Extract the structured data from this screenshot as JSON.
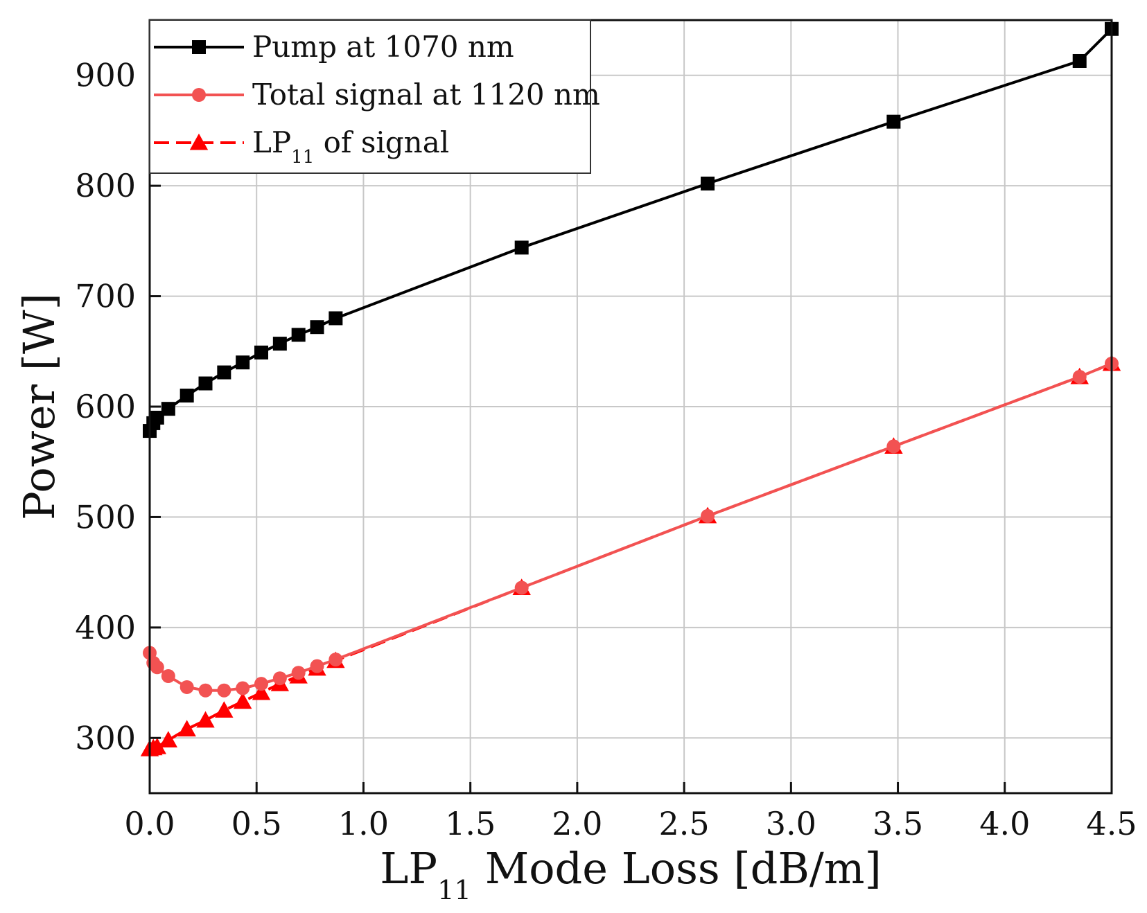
{
  "chart_data": {
    "type": "line",
    "title": "",
    "xlabel": {
      "prefix": "LP",
      "subscript": "11",
      "suffix": " Mode Loss [dB/m]"
    },
    "ylabel": "Power [W]",
    "xlim": [
      0,
      4.5
    ],
    "ylim": [
      250,
      950
    ],
    "xticks": [
      0.0,
      0.5,
      1.0,
      1.5,
      2.0,
      2.5,
      3.0,
      3.5,
      4.0,
      4.5
    ],
    "xtick_labels": [
      "0.0",
      "0.5",
      "1.0",
      "1.5",
      "2.0",
      "2.5",
      "3.0",
      "3.5",
      "4.0",
      "4.5"
    ],
    "yticks": [
      300,
      400,
      500,
      600,
      700,
      800,
      900
    ],
    "ytick_labels": [
      "300",
      "400",
      "500",
      "600",
      "700",
      "800",
      "900"
    ],
    "grid": true,
    "legend_position": "top-left",
    "series": [
      {
        "name": "Pump at 1070 nm",
        "label_prefix": "Pump at 1070 nm",
        "label_subscript": "",
        "label_suffix": "",
        "color": "#000000",
        "marker": "square",
        "dashed": false,
        "x": [
          0.0,
          0.017,
          0.035,
          0.087,
          0.174,
          0.261,
          0.348,
          0.435,
          0.522,
          0.609,
          0.696,
          0.783,
          0.87,
          1.74,
          2.61,
          3.48,
          4.35,
          4.5
        ],
        "y": [
          578,
          585,
          590,
          598,
          610,
          621,
          631,
          640,
          649,
          657,
          665,
          672,
          680,
          744,
          802,
          858,
          913,
          942
        ]
      },
      {
        "name": "Total signal at 1120 nm",
        "label_prefix": "Total signal at 1120 nm",
        "label_subscript": "",
        "label_suffix": "",
        "color": "#f25252",
        "marker": "circle",
        "dashed": false,
        "x": [
          0.0,
          0.017,
          0.035,
          0.087,
          0.174,
          0.261,
          0.348,
          0.435,
          0.522,
          0.609,
          0.696,
          0.783,
          0.87,
          1.74,
          2.61,
          3.48,
          4.35,
          4.5
        ],
        "y": [
          377,
          368,
          364,
          356,
          346,
          343,
          343,
          345,
          349,
          354,
          359,
          365,
          371,
          436,
          501,
          564,
          627,
          639
        ]
      },
      {
        "name": "LP11 of signal",
        "label_prefix": "LP",
        "label_subscript": "11",
        "label_suffix": " of signal",
        "color": "#ff0000",
        "marker": "triangle",
        "dashed": true,
        "x": [
          0.0,
          0.017,
          0.035,
          0.087,
          0.174,
          0.261,
          0.348,
          0.435,
          0.522,
          0.609,
          0.696,
          0.783,
          0.87,
          1.74,
          2.61,
          3.48,
          4.35,
          4.5
        ],
        "y": [
          290,
          291,
          292,
          298,
          308,
          316,
          325,
          333,
          341,
          349,
          356,
          363,
          370,
          436,
          501,
          564,
          627,
          639
        ]
      }
    ]
  }
}
